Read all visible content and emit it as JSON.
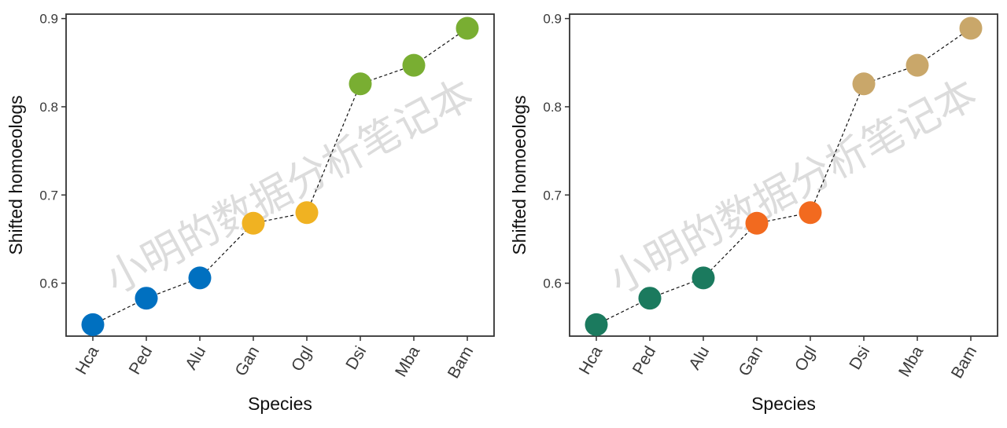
{
  "watermark": "小明的数据分析笔记本",
  "chart_data": [
    {
      "type": "scatter",
      "connect_points": true,
      "line_style": "dashed",
      "xlabel": "Species",
      "ylabel": "Shifted homoeologs",
      "categories": [
        "Hca",
        "Ped",
        "Alu",
        "Gan",
        "Ogl",
        "Dsi",
        "Mba",
        "Bam"
      ],
      "values": [
        0.553,
        0.583,
        0.606,
        0.668,
        0.68,
        0.826,
        0.847,
        0.889
      ],
      "group_colors": [
        "#0070C0",
        "#0070C0",
        "#0070C0",
        "#F0B222",
        "#F0B222",
        "#79AE32",
        "#79AE32",
        "#79AE32"
      ],
      "ylim": [
        0.54,
        0.905
      ],
      "yticks": [
        "0.6",
        "0.7",
        "0.8",
        "0.9"
      ],
      "grid": false
    },
    {
      "type": "scatter",
      "connect_points": true,
      "line_style": "dashed",
      "xlabel": "Species",
      "ylabel": "Shifted homoeologs",
      "categories": [
        "Hca",
        "Ped",
        "Alu",
        "Gan",
        "Ogl",
        "Dsi",
        "Mba",
        "Bam"
      ],
      "values": [
        0.553,
        0.583,
        0.606,
        0.668,
        0.68,
        0.826,
        0.847,
        0.889
      ],
      "group_colors": [
        "#1B7A5E",
        "#1B7A5E",
        "#1B7A5E",
        "#F26A1F",
        "#F26A1F",
        "#C9A76A",
        "#C9A76A",
        "#C9A76A"
      ],
      "ylim": [
        0.54,
        0.905
      ],
      "yticks": [
        "0.6",
        "0.7",
        "0.8",
        "0.9"
      ],
      "grid": false
    }
  ]
}
